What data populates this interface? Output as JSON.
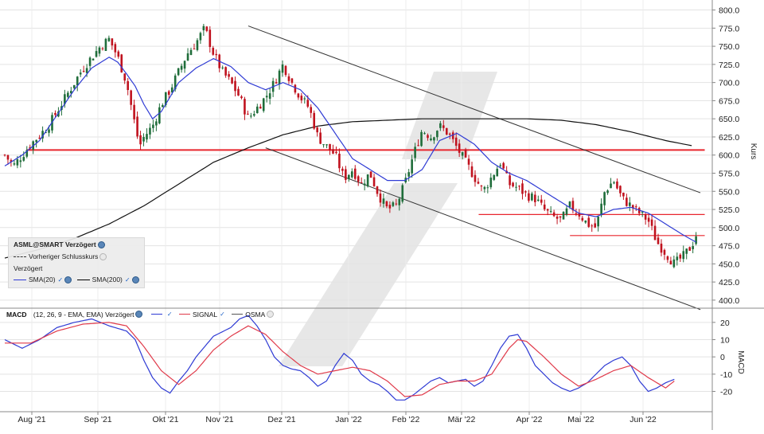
{
  "chart_data": [
    {
      "type": "candlestick",
      "instrument_label": "ASML@SMART Verzögert",
      "y_axis_label": "Kurs",
      "ylim": [
        390,
        805
      ],
      "y_ticks": [
        "800.0",
        "775.0",
        "750.0",
        "725.0",
        "700.0",
        "675.0",
        "650.0",
        "625.0",
        "600.0",
        "575.0",
        "550.0",
        "525.0",
        "500.0",
        "475.0",
        "450.0",
        "425.0",
        "400.0"
      ],
      "x_ticks": [
        "Aug '21",
        "Sep '21",
        "Okt '21",
        "Nov '21",
        "Dez '21",
        "Jan '22",
        "Feb '22",
        "Mär '22",
        "Apr '22",
        "Mai '22",
        "Jun '22"
      ],
      "legend": {
        "title": "ASML@SMART Verzögert",
        "prev_close_label": "Vorheriger Schlusskurs",
        "delayed_label": "Verzögert",
        "sma20_label": "SMA(20)",
        "sma200_label": "SMA(200)"
      },
      "close_path": [
        [
          0,
          600
        ],
        [
          1,
          585
        ],
        [
          3,
          615
        ],
        [
          5,
          640
        ],
        [
          7,
          680
        ],
        [
          9,
          720
        ],
        [
          11,
          750
        ],
        [
          12,
          760
        ],
        [
          13,
          735
        ],
        [
          14,
          700
        ],
        [
          15,
          640
        ],
        [
          15.5,
          612
        ],
        [
          16,
          625
        ],
        [
          17,
          640
        ],
        [
          18,
          670
        ],
        [
          19,
          690
        ],
        [
          20,
          715
        ],
        [
          21,
          740
        ],
        [
          22,
          755
        ],
        [
          23,
          775
        ],
        [
          24,
          740
        ],
        [
          25,
          715
        ],
        [
          26,
          700
        ],
        [
          27,
          680
        ],
        [
          28,
          650
        ],
        [
          29,
          665
        ],
        [
          30,
          680
        ],
        [
          31,
          700
        ],
        [
          32,
          725
        ],
        [
          33,
          700
        ],
        [
          34,
          680
        ],
        [
          35,
          665
        ],
        [
          36,
          625
        ],
        [
          37,
          612
        ],
        [
          38,
          600
        ],
        [
          39,
          568
        ],
        [
          40,
          580
        ],
        [
          41,
          560
        ],
        [
          42,
          575
        ],
        [
          43,
          545
        ],
        [
          44,
          525
        ],
        [
          45,
          530
        ],
        [
          46,
          560
        ],
        [
          47,
          600
        ],
        [
          48,
          635
        ],
        [
          49,
          625
        ],
        [
          50,
          640
        ],
        [
          51,
          630
        ],
        [
          52,
          610
        ],
        [
          53,
          590
        ],
        [
          54,
          570
        ],
        [
          55,
          550
        ],
        [
          56,
          570
        ],
        [
          57,
          590
        ],
        [
          58,
          560
        ],
        [
          59,
          555
        ],
        [
          60,
          545
        ],
        [
          61,
          540
        ],
        [
          62,
          525
        ],
        [
          63,
          515
        ],
        [
          64,
          510
        ],
        [
          65,
          530
        ],
        [
          66,
          520
        ],
        [
          67,
          505
        ],
        [
          68,
          500
        ],
        [
          69,
          550
        ],
        [
          70,
          565
        ],
        [
          71,
          540
        ],
        [
          72,
          530
        ],
        [
          73,
          520
        ],
        [
          74,
          510
        ],
        [
          75,
          480
        ],
        [
          76,
          465
        ],
        [
          77,
          450
        ],
        [
          78,
          460
        ],
        [
          79,
          475
        ],
        [
          79.5,
          490
        ]
      ],
      "sma20": [
        [
          0,
          585
        ],
        [
          2,
          600
        ],
        [
          4,
          620
        ],
        [
          6,
          655
        ],
        [
          8,
          690
        ],
        [
          10,
          720
        ],
        [
          12,
          735
        ],
        [
          13,
          728
        ],
        [
          14,
          712
        ],
        [
          15,
          695
        ],
        [
          16,
          670
        ],
        [
          17,
          650
        ],
        [
          18,
          660
        ],
        [
          19,
          680
        ],
        [
          20,
          700
        ],
        [
          22,
          720
        ],
        [
          24,
          733
        ],
        [
          26,
          722
        ],
        [
          28,
          700
        ],
        [
          30,
          690
        ],
        [
          32,
          700
        ],
        [
          34,
          690
        ],
        [
          36,
          665
        ],
        [
          38,
          630
        ],
        [
          40,
          595
        ],
        [
          42,
          580
        ],
        [
          44,
          565
        ],
        [
          46,
          565
        ],
        [
          48,
          580
        ],
        [
          50,
          620
        ],
        [
          52,
          630
        ],
        [
          54,
          615
        ],
        [
          56,
          590
        ],
        [
          58,
          575
        ],
        [
          60,
          565
        ],
        [
          62,
          550
        ],
        [
          64,
          535
        ],
        [
          66,
          520
        ],
        [
          68,
          515
        ],
        [
          70,
          525
        ],
        [
          72,
          528
        ],
        [
          74,
          520
        ],
        [
          76,
          505
        ],
        [
          78,
          490
        ],
        [
          79.5,
          480
        ]
      ],
      "sma200": [
        [
          0,
          458
        ],
        [
          4,
          470
        ],
        [
          8,
          485
        ],
        [
          12,
          505
        ],
        [
          16,
          530
        ],
        [
          20,
          560
        ],
        [
          24,
          590
        ],
        [
          28,
          610
        ],
        [
          32,
          628
        ],
        [
          36,
          640
        ],
        [
          40,
          646
        ],
        [
          44,
          648
        ],
        [
          48,
          650
        ],
        [
          52,
          650
        ],
        [
          56,
          650
        ],
        [
          60,
          650
        ],
        [
          64,
          648
        ],
        [
          68,
          642
        ],
        [
          72,
          632
        ],
        [
          76,
          620
        ],
        [
          79,
          613
        ]
      ],
      "trend_lines": [
        {
          "from": [
            28,
            778
          ],
          "to": [
            80,
            548
          ]
        },
        {
          "from": [
            30,
            610
          ],
          "to": [
            80,
            387
          ]
        }
      ],
      "horizontal_levels": [
        {
          "value": 607,
          "from_x": 2.5,
          "to_x": 80.5
        },
        {
          "value": 518,
          "from_x": 54.5,
          "to_x": 80.5
        },
        {
          "value": 489,
          "from_x": 65,
          "to_x": 80.5
        }
      ],
      "up_color": "#1f6d3a",
      "down_color": "#c0121e"
    },
    {
      "type": "line",
      "title": "MACD",
      "params": "(12, 26, 9 - EMA, EMA) Verzögert",
      "y_axis_label": "MACD",
      "ylim": [
        -29,
        25
      ],
      "y_ticks": [
        "20",
        "10",
        "0",
        "-10",
        "-20"
      ],
      "series": [
        {
          "name": "MACD",
          "color": "#2f3bd4",
          "points": [
            [
              0,
              10
            ],
            [
              2,
              5
            ],
            [
              4,
              10
            ],
            [
              6,
              17
            ],
            [
              8,
              20
            ],
            [
              10,
              22
            ],
            [
              12,
              18
            ],
            [
              14,
              15
            ],
            [
              15,
              10
            ],
            [
              16,
              -2
            ],
            [
              17,
              -12
            ],
            [
              18,
              -18
            ],
            [
              19,
              -21
            ],
            [
              20,
              -14
            ],
            [
              21,
              -8
            ],
            [
              22,
              0
            ],
            [
              24,
              12
            ],
            [
              26,
              17
            ],
            [
              27,
              22
            ],
            [
              28,
              24
            ],
            [
              29,
              18
            ],
            [
              30,
              10
            ],
            [
              31,
              0
            ],
            [
              32,
              -5
            ],
            [
              33,
              -7
            ],
            [
              34,
              -8
            ],
            [
              35,
              -12
            ],
            [
              36,
              -17
            ],
            [
              37,
              -14
            ],
            [
              38,
              -5
            ],
            [
              39,
              2
            ],
            [
              40,
              -2
            ],
            [
              41,
              -10
            ],
            [
              42,
              -14
            ],
            [
              43,
              -16
            ],
            [
              44,
              -20
            ],
            [
              45,
              -25
            ],
            [
              46,
              -25
            ],
            [
              47,
              -22
            ],
            [
              48,
              -18
            ],
            [
              49,
              -14
            ],
            [
              50,
              -12
            ],
            [
              51,
              -15
            ],
            [
              52,
              -14
            ],
            [
              53,
              -13
            ],
            [
              54,
              -17
            ],
            [
              55,
              -14
            ],
            [
              56,
              -5
            ],
            [
              57,
              5
            ],
            [
              58,
              12
            ],
            [
              59,
              13
            ],
            [
              60,
              5
            ],
            [
              61,
              -5
            ],
            [
              62,
              -10
            ],
            [
              63,
              -15
            ],
            [
              64,
              -18
            ],
            [
              65,
              -20
            ],
            [
              66,
              -18
            ],
            [
              67,
              -15
            ],
            [
              68,
              -10
            ],
            [
              69,
              -5
            ],
            [
              70,
              -2
            ],
            [
              71,
              0
            ],
            [
              72,
              -5
            ],
            [
              73,
              -14
            ],
            [
              74,
              -20
            ],
            [
              75,
              -18
            ],
            [
              76,
              -15
            ],
            [
              77,
              -13
            ]
          ]
        },
        {
          "name": "SIGNAL",
          "color": "#e03a4a",
          "points": [
            [
              0,
              8
            ],
            [
              3,
              8
            ],
            [
              6,
              15
            ],
            [
              9,
              19
            ],
            [
              12,
              20
            ],
            [
              14,
              18
            ],
            [
              16,
              6
            ],
            [
              18,
              -8
            ],
            [
              20,
              -16
            ],
            [
              22,
              -8
            ],
            [
              24,
              4
            ],
            [
              26,
              12
            ],
            [
              28,
              18
            ],
            [
              30,
              13
            ],
            [
              32,
              3
            ],
            [
              34,
              -5
            ],
            [
              36,
              -10
            ],
            [
              38,
              -8
            ],
            [
              40,
              -6
            ],
            [
              42,
              -8
            ],
            [
              44,
              -14
            ],
            [
              46,
              -23
            ],
            [
              48,
              -22
            ],
            [
              50,
              -16
            ],
            [
              52,
              -14
            ],
            [
              54,
              -14
            ],
            [
              56,
              -10
            ],
            [
              58,
              5
            ],
            [
              59,
              10
            ],
            [
              60,
              9
            ],
            [
              62,
              0
            ],
            [
              64,
              -10
            ],
            [
              66,
              -17
            ],
            [
              68,
              -13
            ],
            [
              70,
              -8
            ],
            [
              72,
              -5
            ],
            [
              74,
              -12
            ],
            [
              76,
              -18
            ],
            [
              77,
              -14
            ]
          ]
        }
      ],
      "legend_labels": [
        "SIGNAL",
        "OSMA"
      ],
      "osma_color": "#555555"
    }
  ]
}
